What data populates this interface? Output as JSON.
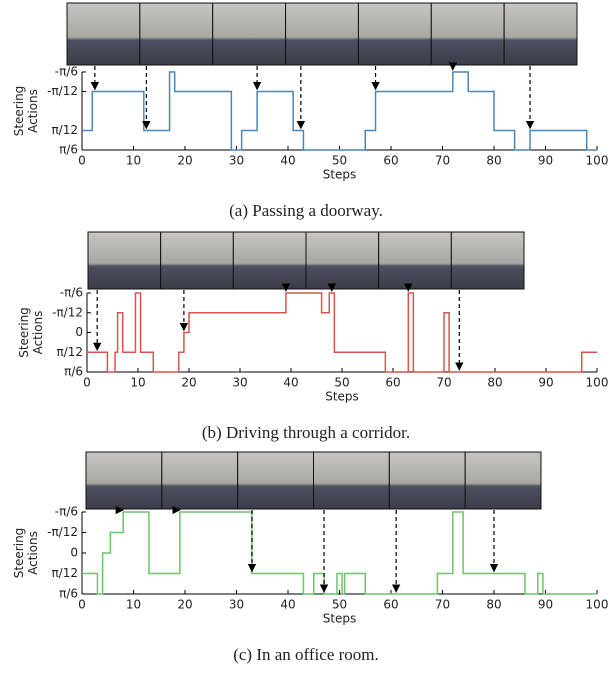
{
  "chart_data": [
    {
      "type": "line",
      "step": "post",
      "color": "#4a86b8",
      "ylabel": [
        "Steering",
        "Actions"
      ],
      "xlabel": "Steps",
      "caption": "(a) Passing a doorway.",
      "x": [
        0,
        2,
        12,
        17,
        18,
        29,
        31,
        34,
        41,
        43,
        55,
        57,
        72,
        75,
        80,
        84,
        87,
        98,
        100
      ],
      "values": [
        1,
        -1,
        1,
        -2,
        -1,
        2,
        1,
        -1,
        1,
        2,
        1,
        -1,
        -2,
        -1,
        1,
        2,
        1,
        2,
        2
      ],
      "arrow_steps": [
        2.5,
        12.5,
        34,
        42.5,
        57,
        72,
        87
      ],
      "xlim": [
        0,
        100
      ],
      "xticks": [
        0,
        10,
        20,
        30,
        40,
        50,
        60,
        70,
        80,
        90,
        100
      ],
      "ylim": [
        2,
        -2
      ],
      "yticks": [
        {
          "value": -2,
          "label": "-π/6"
        },
        {
          "value": -1,
          "label": "-π/12"
        },
        {
          "value": 1,
          "label": "π/12"
        },
        {
          "value": 2,
          "label": "π/6"
        }
      ]
    },
    {
      "type": "line",
      "step": "post",
      "color": "#d9534f",
      "ylabel": [
        "Steering",
        "Actions"
      ],
      "xlabel": "Steps",
      "caption": "(b) Driving through a corridor.",
      "x": [
        0,
        4,
        5.5,
        6,
        7,
        9.5,
        10.5,
        13,
        18,
        19,
        20,
        39,
        46,
        47.5,
        48.5,
        58.5,
        63,
        64,
        70,
        71,
        97,
        100
      ],
      "values": [
        1,
        2,
        1,
        -1,
        1,
        -2,
        1,
        2,
        1,
        0,
        -1,
        -2,
        -1,
        -2,
        1,
        2,
        -2,
        2,
        -1,
        2,
        1,
        1
      ],
      "arrow_steps": [
        2,
        19,
        39,
        48,
        63,
        73
      ],
      "xlim": [
        0,
        100
      ],
      "xticks": [
        0,
        10,
        20,
        30,
        40,
        50,
        60,
        70,
        80,
        90,
        100
      ],
      "ylim": [
        2,
        -2
      ],
      "yticks": [
        {
          "value": -2,
          "label": "-π/6"
        },
        {
          "value": -1,
          "label": "-π/12"
        },
        0,
        {
          "value": 1,
          "label": "π/12"
        },
        {
          "value": 2,
          "label": "π/6"
        }
      ]
    },
    {
      "type": "line",
      "step": "post",
      "color": "#6cc46c",
      "ylabel": [
        "Steering",
        "Actions"
      ],
      "xlabel": "Steps",
      "caption": "(c) In an office room.",
      "x": [
        0,
        3,
        4,
        5.5,
        8,
        13,
        19,
        33,
        43,
        45,
        47,
        49.5,
        50.5,
        51,
        55,
        69,
        72,
        74,
        86,
        88.5,
        89.5,
        100
      ],
      "values": [
        1,
        2,
        0,
        -1,
        -2,
        1,
        -2,
        1,
        2,
        1,
        2,
        1,
        2,
        1,
        2,
        1,
        -2,
        1,
        2,
        1,
        2,
        2
      ],
      "arrow_steps": [
        8,
        19,
        33,
        47,
        61,
        80
      ],
      "xlim": [
        0,
        100
      ],
      "xticks": [
        0,
        10,
        20,
        30,
        40,
        50,
        60,
        70,
        80,
        90,
        100
      ],
      "ylim": [
        2,
        -2
      ],
      "yticks": [
        {
          "value": -2,
          "label": "-π/6"
        },
        {
          "value": -1,
          "label": "-π/12"
        },
        0,
        {
          "value": 1,
          "label": "π/12"
        },
        {
          "value": 2,
          "label": "π/6"
        }
      ]
    }
  ]
}
